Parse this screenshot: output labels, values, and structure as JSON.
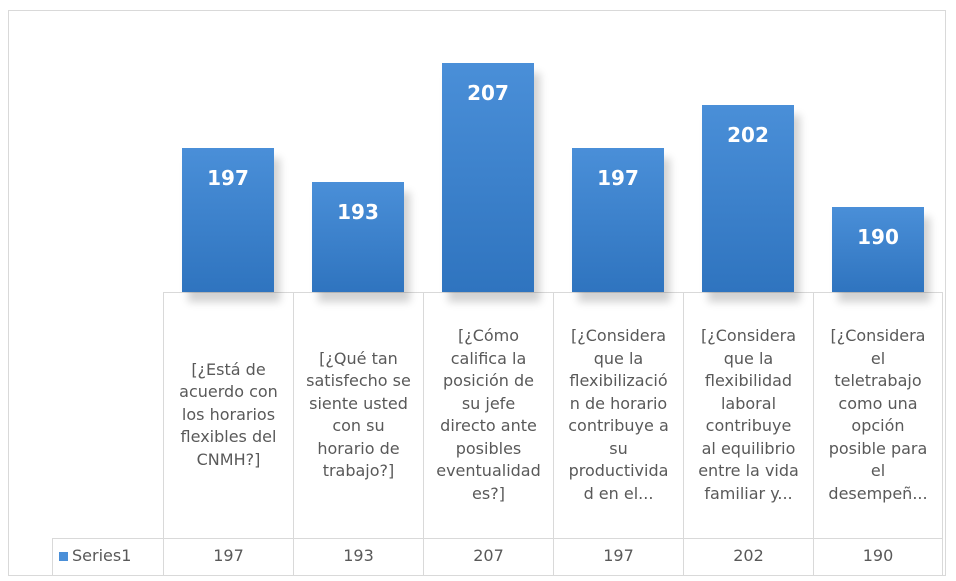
{
  "chart_data": {
    "type": "bar",
    "categories": [
      "[¿Está de\nacuerdo con\nlos horarios\nflexibles del\nCNMH?]",
      "[¿Qué tan\nsatisfecho se\nsiente usted\ncon su\nhorario de\ntrabajo?]",
      "[¿Cómo\ncalifica la\nposición de\nsu jefe\ndirecto ante\nposibles\neventualidad\nes?]",
      "[¿Considera\nque la\nflexibilizació\nn de horario\ncontribuye a\nsu\nproductivida\nd en el...",
      "[¿Considera\nque la\nflexibilidad\nlaboral\ncontribuye\nal equilibrio\nentre la vida\nfamiliar y...",
      "[¿Considera\nel\nteletrabajo\ncomo una\nopción\nposible para\nel\ndesempeñ..."
    ],
    "series": [
      {
        "name": "Series1",
        "color": "#4a8fd8",
        "values": [
          197,
          193,
          207,
          197,
          202,
          190
        ]
      }
    ],
    "ylim": [
      180,
      210
    ]
  }
}
